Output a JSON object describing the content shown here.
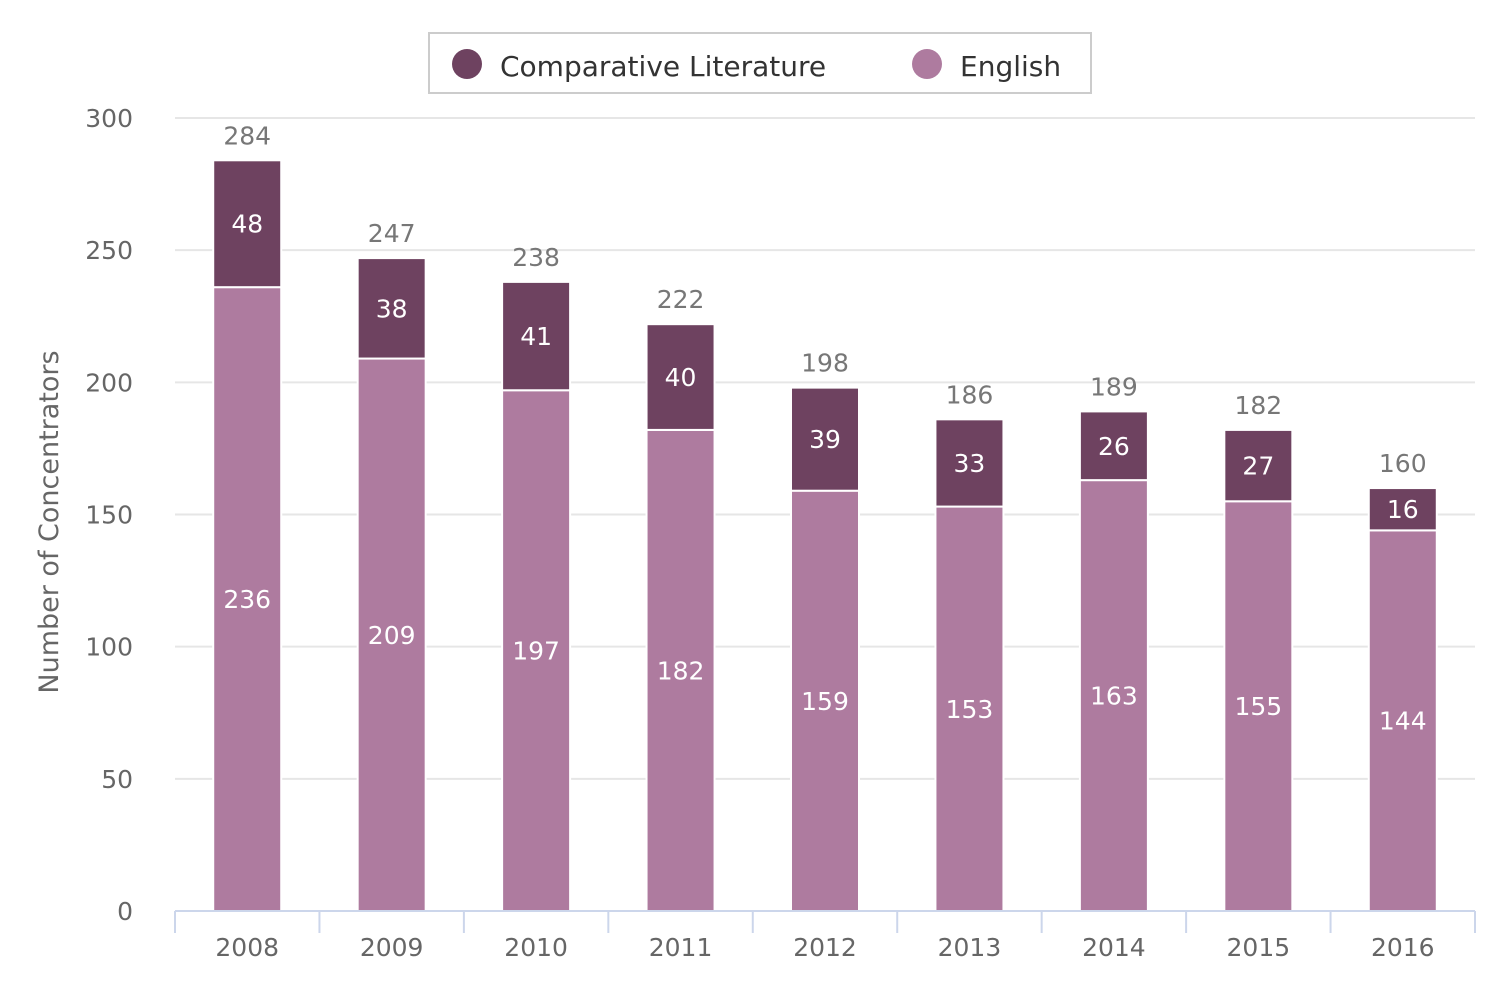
{
  "chart_data": {
    "type": "bar",
    "stacked": true,
    "categories": [
      "2008",
      "2009",
      "2010",
      "2011",
      "2012",
      "2013",
      "2014",
      "2015",
      "2016"
    ],
    "series": [
      {
        "name": "English",
        "color": "#ae7b9f",
        "values": [
          236,
          209,
          197,
          182,
          159,
          153,
          163,
          155,
          144
        ]
      },
      {
        "name": "Comparative Literature",
        "color": "#6e4260",
        "values": [
          48,
          38,
          41,
          40,
          39,
          33,
          26,
          27,
          16
        ]
      }
    ],
    "totals": [
      284,
      247,
      238,
      222,
      198,
      186,
      189,
      182,
      160
    ],
    "legend": {
      "placement": "top-center",
      "items": [
        "Comparative Literature",
        "English"
      ]
    },
    "ylabel": "Number of Concentrators",
    "xlabel": "",
    "ylim": [
      0,
      300
    ],
    "yticks": [
      "0",
      "50",
      "100",
      "150",
      "200",
      "250",
      "300"
    ],
    "grid": true
  }
}
